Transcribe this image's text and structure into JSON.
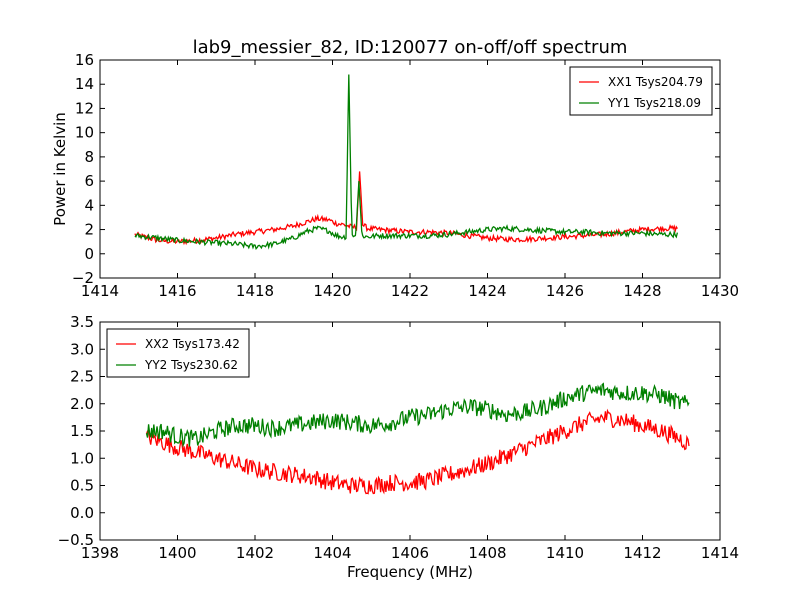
{
  "chart_data": [
    {
      "type": "line",
      "title": "lab9_messier_82, ID:120077 on-off/off spectrum",
      "xlabel": "",
      "ylabel": "Power in Kelvin",
      "xlim": [
        1414,
        1430
      ],
      "ylim": [
        -2,
        16
      ],
      "xticks": [
        1414,
        1416,
        1418,
        1420,
        1422,
        1424,
        1426,
        1428,
        1430
      ],
      "yticks": [
        -2,
        0,
        2,
        4,
        6,
        8,
        10,
        12,
        14,
        16
      ],
      "grid": false,
      "legend_position": "top-right",
      "series": [
        {
          "name": "XX1 Tsys204.79",
          "color": "#ff0000",
          "x": [
            1414.9,
            1415.5,
            1416.0,
            1416.5,
            1417.0,
            1417.5,
            1418.0,
            1418.5,
            1419.0,
            1419.3,
            1419.6,
            1419.9,
            1420.1,
            1420.3,
            1420.5,
            1420.62,
            1420.7,
            1420.78,
            1420.9,
            1421.2,
            1421.6,
            1422.0,
            1422.5,
            1423.0,
            1423.5,
            1424.0,
            1424.5,
            1425.0,
            1425.5,
            1426.0,
            1426.5,
            1427.0,
            1427.5,
            1428.0,
            1428.5,
            1428.9
          ],
          "y": [
            1.6,
            1.1,
            1.0,
            1.1,
            1.3,
            1.6,
            1.8,
            2.0,
            2.3,
            2.6,
            2.9,
            2.8,
            2.5,
            2.4,
            2.2,
            2.2,
            6.8,
            2.4,
            2.1,
            2.0,
            1.9,
            1.8,
            1.8,
            1.7,
            1.5,
            1.3,
            1.2,
            1.2,
            1.3,
            1.4,
            1.5,
            1.6,
            1.8,
            2.0,
            2.1,
            2.1
          ]
        },
        {
          "name": "YY1 Tsys218.09",
          "color": "#008000",
          "x": [
            1414.9,
            1415.5,
            1416.0,
            1416.5,
            1417.0,
            1417.5,
            1418.0,
            1418.5,
            1419.0,
            1419.3,
            1419.6,
            1419.9,
            1420.1,
            1420.25,
            1420.35,
            1420.42,
            1420.5,
            1420.6,
            1420.68,
            1420.76,
            1420.9,
            1421.2,
            1421.6,
            1422.0,
            1422.5,
            1423.0,
            1423.5,
            1424.0,
            1424.5,
            1425.0,
            1425.5,
            1426.0,
            1426.5,
            1427.0,
            1427.5,
            1428.0,
            1428.5,
            1428.9
          ],
          "y": [
            1.5,
            1.3,
            1.1,
            1.0,
            0.9,
            0.8,
            0.6,
            0.8,
            1.3,
            1.8,
            2.1,
            1.9,
            1.5,
            1.4,
            1.4,
            14.8,
            1.6,
            1.4,
            6.0,
            1.5,
            1.4,
            1.5,
            1.5,
            1.5,
            1.5,
            1.6,
            1.8,
            2.0,
            2.1,
            2.0,
            1.9,
            1.8,
            1.8,
            1.7,
            1.7,
            1.7,
            1.6,
            1.6
          ]
        }
      ]
    },
    {
      "type": "line",
      "title": "",
      "xlabel": "Frequency (MHz)",
      "ylabel": "",
      "xlim": [
        1398,
        1414
      ],
      "ylim": [
        -0.5,
        3.5
      ],
      "xticks": [
        1398,
        1400,
        1402,
        1404,
        1406,
        1408,
        1410,
        1412,
        1414
      ],
      "yticks": [
        -0.5,
        0.0,
        0.5,
        1.0,
        1.5,
        2.0,
        2.5,
        3.0,
        3.5
      ],
      "grid": false,
      "legend_position": "top-left",
      "series": [
        {
          "name": "XX2 Tsys173.42",
          "color": "#ff0000",
          "x": [
            1399.2,
            1399.6,
            1400.0,
            1400.5,
            1401.0,
            1401.5,
            1402.0,
            1402.5,
            1403.0,
            1403.5,
            1404.0,
            1404.5,
            1405.0,
            1405.5,
            1406.0,
            1406.5,
            1407.0,
            1407.5,
            1408.0,
            1408.5,
            1409.0,
            1409.5,
            1410.0,
            1410.5,
            1411.0,
            1411.5,
            1412.0,
            1412.5,
            1413.0,
            1413.2
          ],
          "y": [
            1.4,
            1.3,
            1.2,
            1.1,
            1.0,
            0.9,
            0.8,
            0.75,
            0.7,
            0.65,
            0.55,
            0.5,
            0.5,
            0.55,
            0.55,
            0.6,
            0.7,
            0.8,
            0.9,
            1.05,
            1.2,
            1.35,
            1.5,
            1.65,
            1.75,
            1.7,
            1.6,
            1.5,
            1.35,
            1.25
          ]
        },
        {
          "name": "YY2 Tsys230.62",
          "color": "#008000",
          "x": [
            1399.2,
            1399.6,
            1400.0,
            1400.5,
            1401.0,
            1401.5,
            1402.0,
            1402.5,
            1403.0,
            1403.5,
            1404.0,
            1404.5,
            1405.0,
            1405.5,
            1406.0,
            1406.5,
            1407.0,
            1407.5,
            1408.0,
            1408.5,
            1409.0,
            1409.5,
            1410.0,
            1410.5,
            1411.0,
            1411.5,
            1412.0,
            1412.5,
            1413.0,
            1413.2
          ],
          "y": [
            1.5,
            1.5,
            1.4,
            1.35,
            1.5,
            1.6,
            1.6,
            1.55,
            1.6,
            1.65,
            1.7,
            1.65,
            1.6,
            1.65,
            1.75,
            1.8,
            1.9,
            1.95,
            1.9,
            1.8,
            1.85,
            1.95,
            2.1,
            2.2,
            2.25,
            2.2,
            2.2,
            2.15,
            2.0,
            2.0
          ]
        }
      ]
    }
  ]
}
